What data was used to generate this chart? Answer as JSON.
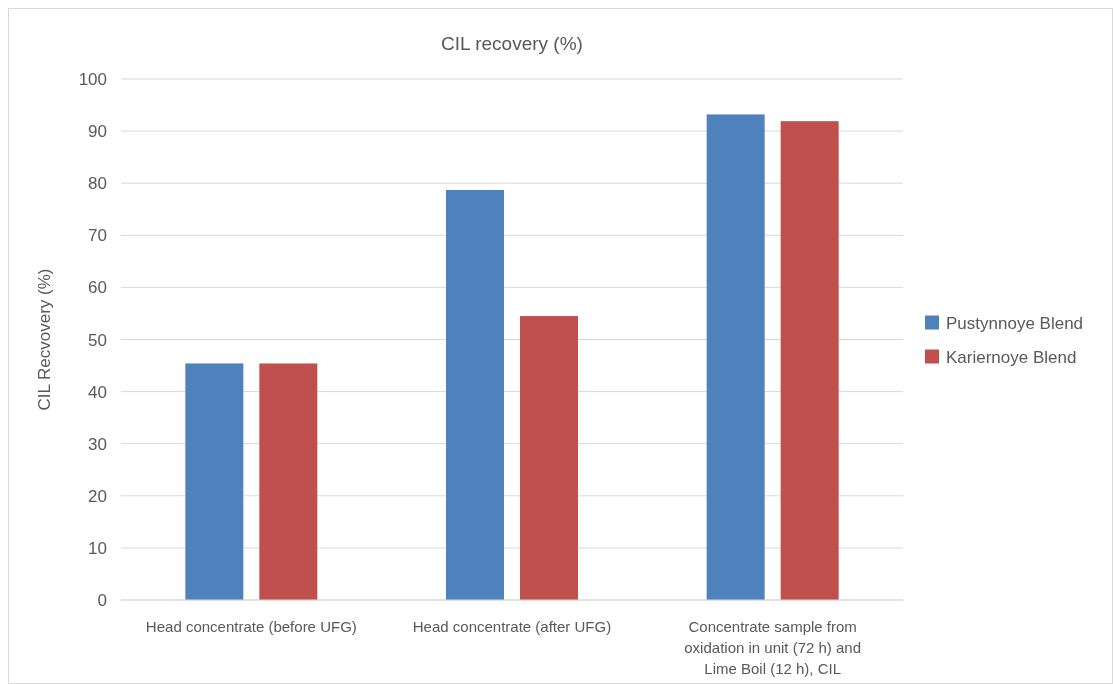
{
  "chart_data": {
    "type": "bar",
    "title": "CIL recovery (%)",
    "ylabel": "CIL Recvovery (%)",
    "categories": [
      "Head concentrate (before UFG)",
      "Head concentrate (after UFG)",
      "Concentrate sample from oxidation in unit (72 h) and Lime Boil (12 h), CIL"
    ],
    "series": [
      {
        "name": "Pustynnoye Blend",
        "color": "#4f81bd",
        "values": [
          45.4,
          78.7,
          93.2
        ]
      },
      {
        "name": "Kariernoye Blend",
        "color": "#c0504d",
        "values": [
          45.4,
          54.5,
          91.9
        ]
      }
    ],
    "ylim": [
      0,
      100
    ],
    "yticks": [
      0,
      10,
      20,
      30,
      40,
      50,
      60,
      70,
      80,
      90,
      100
    ],
    "grid": "y",
    "legend": "right"
  }
}
